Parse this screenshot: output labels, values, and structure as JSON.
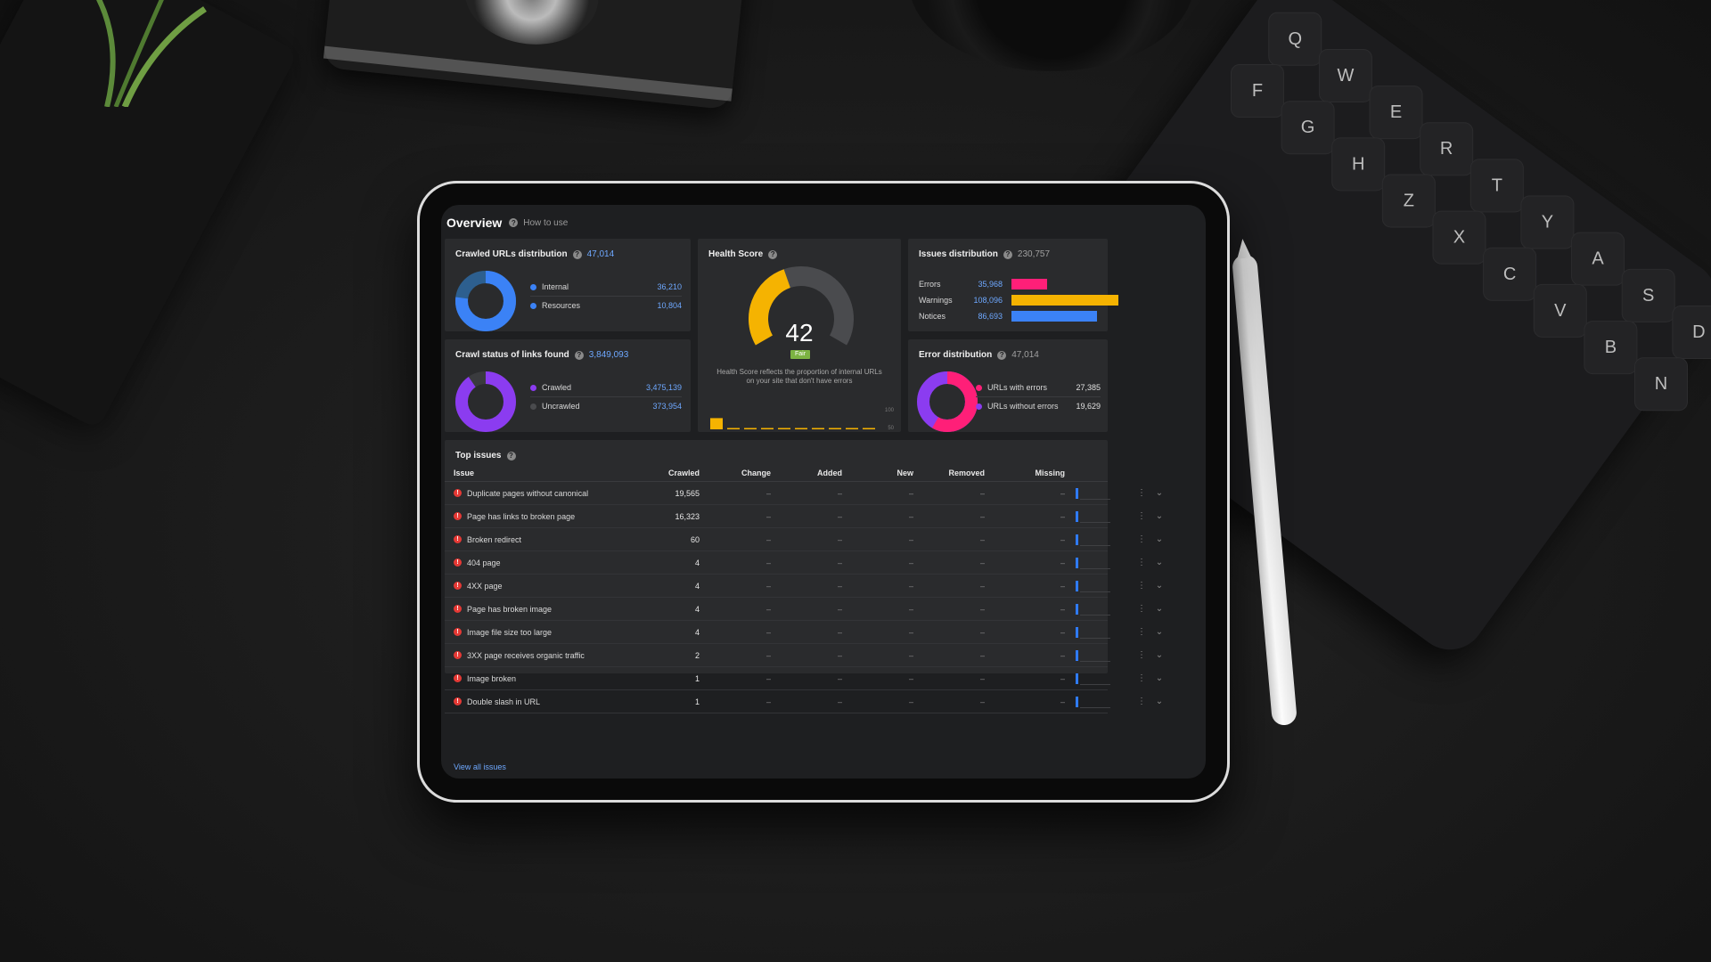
{
  "header": {
    "title": "Overview",
    "help_label": "How to use"
  },
  "crawled_urls": {
    "title": "Crawled URLs distribution",
    "count": "47,014",
    "items": [
      {
        "label": "Internal",
        "value": "36,210",
        "color": "#3b82f6"
      },
      {
        "label": "Resources",
        "value": "10,804",
        "color": "#2d5f8f"
      }
    ]
  },
  "crawl_status": {
    "title": "Crawl status of links found",
    "count": "3,849,093",
    "items": [
      {
        "label": "Crawled",
        "value": "3,475,139",
        "color": "#8b3cf0"
      },
      {
        "label": "Uncrawled",
        "value": "373,954",
        "color": "#3a3b3e"
      }
    ]
  },
  "health_score": {
    "title": "Health Score",
    "score": "42",
    "badge": "Fair",
    "description": "Health Score reflects the proportion of internal URLs on your site that don't have errors",
    "axis": [
      "100",
      "50",
      "0"
    ],
    "gauge_fraction": 0.42,
    "history_values": [
      42,
      0,
      0,
      0,
      0,
      0,
      0,
      0,
      0,
      0
    ],
    "accent": "#f5b301"
  },
  "issues_distribution": {
    "title": "Issues distribution",
    "count": "230,757",
    "items": [
      {
        "label": "Errors",
        "value": "35,968",
        "color": "#ff1f78",
        "amount": 35968
      },
      {
        "label": "Warnings",
        "value": "108,096",
        "color": "#f5b301",
        "amount": 108096
      },
      {
        "label": "Notices",
        "value": "86,693",
        "color": "#3b82f6",
        "amount": 86693
      }
    ]
  },
  "error_distribution": {
    "title": "Error distribution",
    "count": "47,014",
    "items": [
      {
        "label": "URLs with errors",
        "value": "27,385",
        "color": "#ff1f78"
      },
      {
        "label": "URLs without errors",
        "value": "19,629",
        "color": "#8b3cf0"
      }
    ]
  },
  "top_issues": {
    "title": "Top issues",
    "columns": [
      "Issue",
      "Crawled",
      "Change",
      "Added",
      "New",
      "Removed",
      "Missing"
    ],
    "dash": "–",
    "rows": [
      {
        "issue": "Duplicate pages without canonical",
        "crawled": "19,565"
      },
      {
        "issue": "Page has links to broken page",
        "crawled": "16,323"
      },
      {
        "issue": "Broken redirect",
        "crawled": "60"
      },
      {
        "issue": "404 page",
        "crawled": "4"
      },
      {
        "issue": "4XX page",
        "crawled": "4"
      },
      {
        "issue": "Page has broken image",
        "crawled": "4"
      },
      {
        "issue": "Image file size too large",
        "crawled": "4"
      },
      {
        "issue": "3XX page receives organic traffic",
        "crawled": "2"
      },
      {
        "issue": "Image broken",
        "crawled": "1"
      },
      {
        "issue": "Double slash in URL",
        "crawled": "1"
      }
    ],
    "view_all": "View all issues"
  },
  "keyboard_keys": [
    "Q",
    "W",
    "E",
    "R",
    "T",
    "Y",
    "A",
    "S",
    "D",
    "F",
    "G",
    "H",
    "Z",
    "X",
    "C",
    "V",
    "B",
    "N"
  ]
}
